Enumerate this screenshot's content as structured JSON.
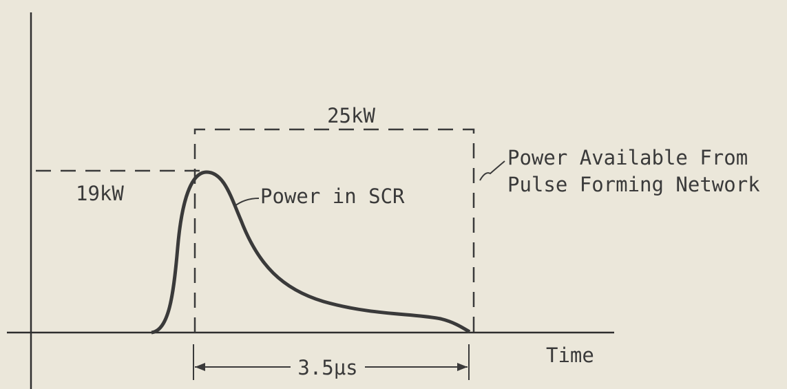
{
  "labels": {
    "peak_available": "25kW",
    "peak_scr": "19kW",
    "curve": "Power in SCR",
    "available": [
      "Power Available From",
      "Pulse Forming Network"
    ],
    "duration": "3.5μs",
    "x_axis": "Time"
  }
}
